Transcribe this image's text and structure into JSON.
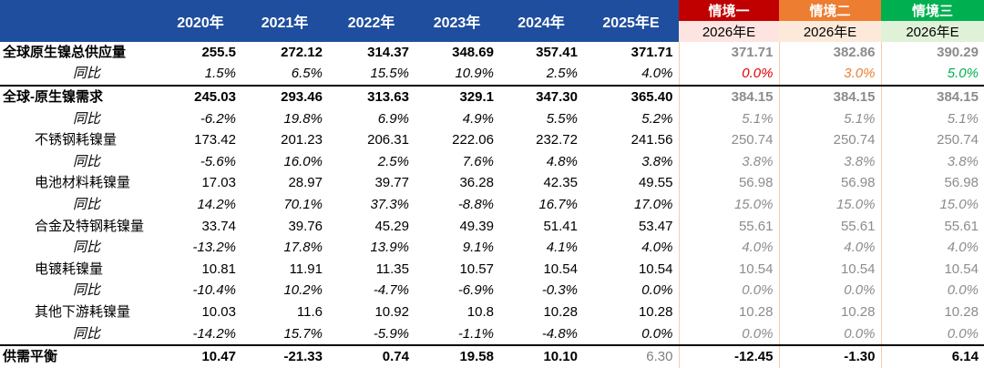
{
  "header": {
    "columns": [
      "2020年",
      "2021年",
      "2022年",
      "2023年",
      "2024年",
      "2025年E"
    ],
    "scenarios": [
      {
        "name": "情境一",
        "year": "2026年E"
      },
      {
        "name": "情境二",
        "year": "2026年E"
      },
      {
        "name": "情境三",
        "year": "2026年E"
      }
    ]
  },
  "rows": [
    {
      "label": "全球原生镍总供应量",
      "values": [
        "255.5",
        "272.12",
        "314.37",
        "348.69",
        "357.41",
        "371.71",
        "371.71",
        "382.86",
        "390.29"
      ]
    },
    {
      "label": "同比",
      "values": [
        "1.5%",
        "6.5%",
        "15.5%",
        "10.9%",
        "2.5%",
        "4.0%",
        "0.0%",
        "3.0%",
        "5.0%"
      ]
    },
    {
      "label": "全球-原生镍需求",
      "values": [
        "245.03",
        "293.46",
        "313.63",
        "329.1",
        "347.30",
        "365.40",
        "384.15",
        "384.15",
        "384.15"
      ]
    },
    {
      "label": "同比",
      "values": [
        "-6.2%",
        "19.8%",
        "6.9%",
        "4.9%",
        "5.5%",
        "5.2%",
        "5.1%",
        "5.1%",
        "5.1%"
      ]
    },
    {
      "label": "不锈钢耗镍量",
      "values": [
        "173.42",
        "201.23",
        "206.31",
        "222.06",
        "232.72",
        "241.56",
        "250.74",
        "250.74",
        "250.74"
      ]
    },
    {
      "label": "同比",
      "values": [
        "-5.6%",
        "16.0%",
        "2.5%",
        "7.6%",
        "4.8%",
        "3.8%",
        "3.8%",
        "3.8%",
        "3.8%"
      ]
    },
    {
      "label": "电池材料耗镍量",
      "values": [
        "17.03",
        "28.97",
        "39.77",
        "36.28",
        "42.35",
        "49.55",
        "56.98",
        "56.98",
        "56.98"
      ]
    },
    {
      "label": "同比",
      "values": [
        "14.2%",
        "70.1%",
        "37.3%",
        "-8.8%",
        "16.7%",
        "17.0%",
        "15.0%",
        "15.0%",
        "15.0%"
      ]
    },
    {
      "label": "合金及特钢耗镍量",
      "values": [
        "33.74",
        "39.76",
        "45.29",
        "49.39",
        "51.41",
        "53.47",
        "55.61",
        "55.61",
        "55.61"
      ]
    },
    {
      "label": "同比",
      "values": [
        "-13.2%",
        "17.8%",
        "13.9%",
        "9.1%",
        "4.1%",
        "4.0%",
        "4.0%",
        "4.0%",
        "4.0%"
      ]
    },
    {
      "label": "电镀耗镍量",
      "values": [
        "10.81",
        "11.91",
        "11.35",
        "10.57",
        "10.54",
        "10.54",
        "10.54",
        "10.54",
        "10.54"
      ]
    },
    {
      "label": "同比",
      "values": [
        "-10.4%",
        "10.2%",
        "-4.7%",
        "-6.9%",
        "-0.3%",
        "0.0%",
        "0.0%",
        "0.0%",
        "0.0%"
      ]
    },
    {
      "label": "其他下游耗镍量",
      "values": [
        "10.03",
        "11.6",
        "10.92",
        "10.8",
        "10.28",
        "10.28",
        "10.28",
        "10.28",
        "10.28"
      ]
    },
    {
      "label": "同比",
      "values": [
        "-14.2%",
        "15.7%",
        "-5.9%",
        "-1.1%",
        "-4.8%",
        "0.0%",
        "0.0%",
        "0.0%",
        "0.0%"
      ]
    },
    {
      "label": "供需平衡",
      "values": [
        "10.47",
        "-21.33",
        "0.74",
        "19.58",
        "10.10",
        "6.30",
        "-12.45",
        "-1.30",
        "6.14"
      ]
    }
  ]
}
